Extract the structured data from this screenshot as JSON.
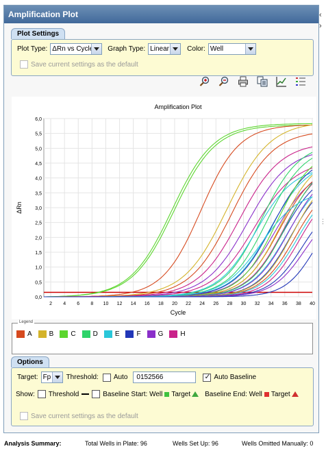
{
  "window": {
    "title": "Amplification Plot"
  },
  "plot_settings": {
    "tab_label": "Plot Settings",
    "plot_type_label": "Plot Type:",
    "plot_type_value": "ΔRn vs Cycle",
    "graph_type_label": "Graph Type:",
    "graph_type_value": "Linear",
    "color_label": "Color:",
    "color_value": "Well",
    "save_default_label": "Save current settings as the default"
  },
  "toolbar": {
    "icons": [
      "zoom-in-icon",
      "zoom-out-icon",
      "print-icon",
      "copy-icon",
      "chart-icon",
      "list-icon"
    ]
  },
  "chart_data": {
    "type": "line",
    "title": "Amplification Plot",
    "xlabel": "Cycle",
    "ylabel": "ΔRn",
    "xlim": [
      1,
      40
    ],
    "ylim": [
      0,
      6.0
    ],
    "x_ticks": [
      2,
      4,
      6,
      8,
      10,
      12,
      14,
      16,
      18,
      20,
      22,
      24,
      26,
      28,
      30,
      32,
      34,
      36,
      38,
      40
    ],
    "y_ticks": [
      "0,0",
      "0,5",
      "1,0",
      "1,5",
      "2,0",
      "2,5",
      "3,0",
      "3,5",
      "4,0",
      "4,5",
      "5,0",
      "5,5",
      "6,0"
    ],
    "grid": true,
    "threshold_line": {
      "value": 0.15,
      "color": "#cc0000"
    },
    "series": [
      {
        "group": "C",
        "color": "#5cd62e",
        "midpoint": 19.6,
        "plateau": 5.85,
        "slope": 0.33
      },
      {
        "group": "C",
        "color": "#5cd62e",
        "midpoint": 19.9,
        "plateau": 5.8,
        "slope": 0.33
      },
      {
        "group": "A",
        "color": "#d64a1f",
        "midpoint": 23.8,
        "plateau": 5.8,
        "slope": 0.36
      },
      {
        "group": "B",
        "color": "#d4b32a",
        "midpoint": 27.6,
        "plateau": 5.9,
        "slope": 0.32
      },
      {
        "group": "A",
        "color": "#d64a1f",
        "midpoint": 28.3,
        "plateau": 5.6,
        "slope": 0.33
      },
      {
        "group": "H",
        "color": "#c9228a",
        "midpoint": 29.4,
        "plateau": 5.2,
        "slope": 0.33
      },
      {
        "group": "G",
        "color": "#8a2fc9",
        "midpoint": 30.6,
        "plateau": 5.0,
        "slope": 0.33
      },
      {
        "group": "H",
        "color": "#c9228a",
        "midpoint": 31.5,
        "plateau": 4.6,
        "slope": 0.33
      },
      {
        "group": "D",
        "color": "#2ed36a",
        "midpoint": 32.6,
        "plateau": 5.2,
        "slope": 0.36
      },
      {
        "group": "E",
        "color": "#2ac7d9",
        "midpoint": 31.8,
        "plateau": 4.4,
        "slope": 0.36
      },
      {
        "group": "D",
        "color": "#2ed36a",
        "midpoint": 33.4,
        "plateau": 5.1,
        "slope": 0.36
      },
      {
        "group": "E",
        "color": "#2ac7d9",
        "midpoint": 33.9,
        "plateau": 4.6,
        "slope": 0.36
      },
      {
        "group": "F",
        "color": "#2237b8",
        "midpoint": 34.2,
        "plateau": 4.8,
        "slope": 0.36
      },
      {
        "group": "G",
        "color": "#8a2fc9",
        "midpoint": 34.6,
        "plateau": 4.4,
        "slope": 0.36
      },
      {
        "group": "C",
        "color": "#5cd62e",
        "midpoint": 34.8,
        "plateau": 5.0,
        "slope": 0.38
      },
      {
        "group": "A",
        "color": "#d64a1f",
        "midpoint": 35.2,
        "plateau": 4.5,
        "slope": 0.38
      },
      {
        "group": "B",
        "color": "#d4b32a",
        "midpoint": 35.4,
        "plateau": 4.8,
        "slope": 0.38
      },
      {
        "group": "F",
        "color": "#2237b8",
        "midpoint": 35.7,
        "plateau": 4.3,
        "slope": 0.38
      },
      {
        "group": "H",
        "color": "#c9228a",
        "midpoint": 35.9,
        "plateau": 4.6,
        "slope": 0.38
      },
      {
        "group": "D",
        "color": "#2ed36a",
        "midpoint": 36.1,
        "plateau": 4.7,
        "slope": 0.38
      },
      {
        "group": "E",
        "color": "#2ac7d9",
        "midpoint": 36.3,
        "plateau": 4.2,
        "slope": 0.38
      },
      {
        "group": "G",
        "color": "#8a2fc9",
        "midpoint": 36.6,
        "plateau": 4.4,
        "slope": 0.38
      },
      {
        "group": "F",
        "color": "#2237b8",
        "midpoint": 36.9,
        "plateau": 4.1,
        "slope": 0.4
      },
      {
        "group": "B",
        "color": "#d4b32a",
        "midpoint": 37.2,
        "plateau": 4.3,
        "slope": 0.4
      },
      {
        "group": "A",
        "color": "#d64a1f",
        "midpoint": 37.5,
        "plateau": 4.0,
        "slope": 0.4
      },
      {
        "group": "E",
        "color": "#2ac7d9",
        "midpoint": 37.8,
        "plateau": 3.9,
        "slope": 0.4
      },
      {
        "group": "H",
        "color": "#c9228a",
        "midpoint": 38.1,
        "plateau": 3.8,
        "slope": 0.42
      },
      {
        "group": "F",
        "color": "#2237b8",
        "midpoint": 38.6,
        "plateau": 3.4,
        "slope": 0.42
      },
      {
        "group": "G",
        "color": "#8a2fc9",
        "midpoint": 39.0,
        "plateau": 3.2,
        "slope": 0.42
      },
      {
        "group": "E",
        "color": "#2ac7d9",
        "midpoint": 32.6,
        "plateau": 3.6,
        "slope": 0.36
      },
      {
        "group": "F",
        "color": "#2237b8",
        "midpoint": 40.6,
        "plateau": 3.4,
        "slope": 0.45
      }
    ]
  },
  "legend": {
    "title": "Legend",
    "items": [
      {
        "label": "A",
        "color": "#d64a1f"
      },
      {
        "label": "B",
        "color": "#d4b32a"
      },
      {
        "label": "C",
        "color": "#5cd62e"
      },
      {
        "label": "D",
        "color": "#2ed36a"
      },
      {
        "label": "E",
        "color": "#2ac7d9"
      },
      {
        "label": "F",
        "color": "#2237b8"
      },
      {
        "label": "G",
        "color": "#8a2fc9"
      },
      {
        "label": "H",
        "color": "#c9228a"
      }
    ]
  },
  "options": {
    "tab_label": "Options",
    "target_label": "Target:",
    "target_value": "Fp",
    "threshold_label": "Threshold:",
    "auto_label": "Auto",
    "threshold_value": "0152566",
    "auto_baseline_label": "Auto Baseline",
    "show_label": "Show:",
    "show_threshold_label": "Threshold",
    "baseline_start_label": "Baseline Start: Well",
    "target_label_2": "Target",
    "baseline_end_label": "Baseline End: Well",
    "target_label_3": "Target",
    "save_default_label": "Save current settings as the default"
  },
  "summary": {
    "title": "Analysis Summary:",
    "total_wells_label": "Total Wells in Plate: 96",
    "wells_setup_label": "Wells Set Up: 96",
    "wells_omitted_label": "Wells Omitted Manually: 0"
  }
}
